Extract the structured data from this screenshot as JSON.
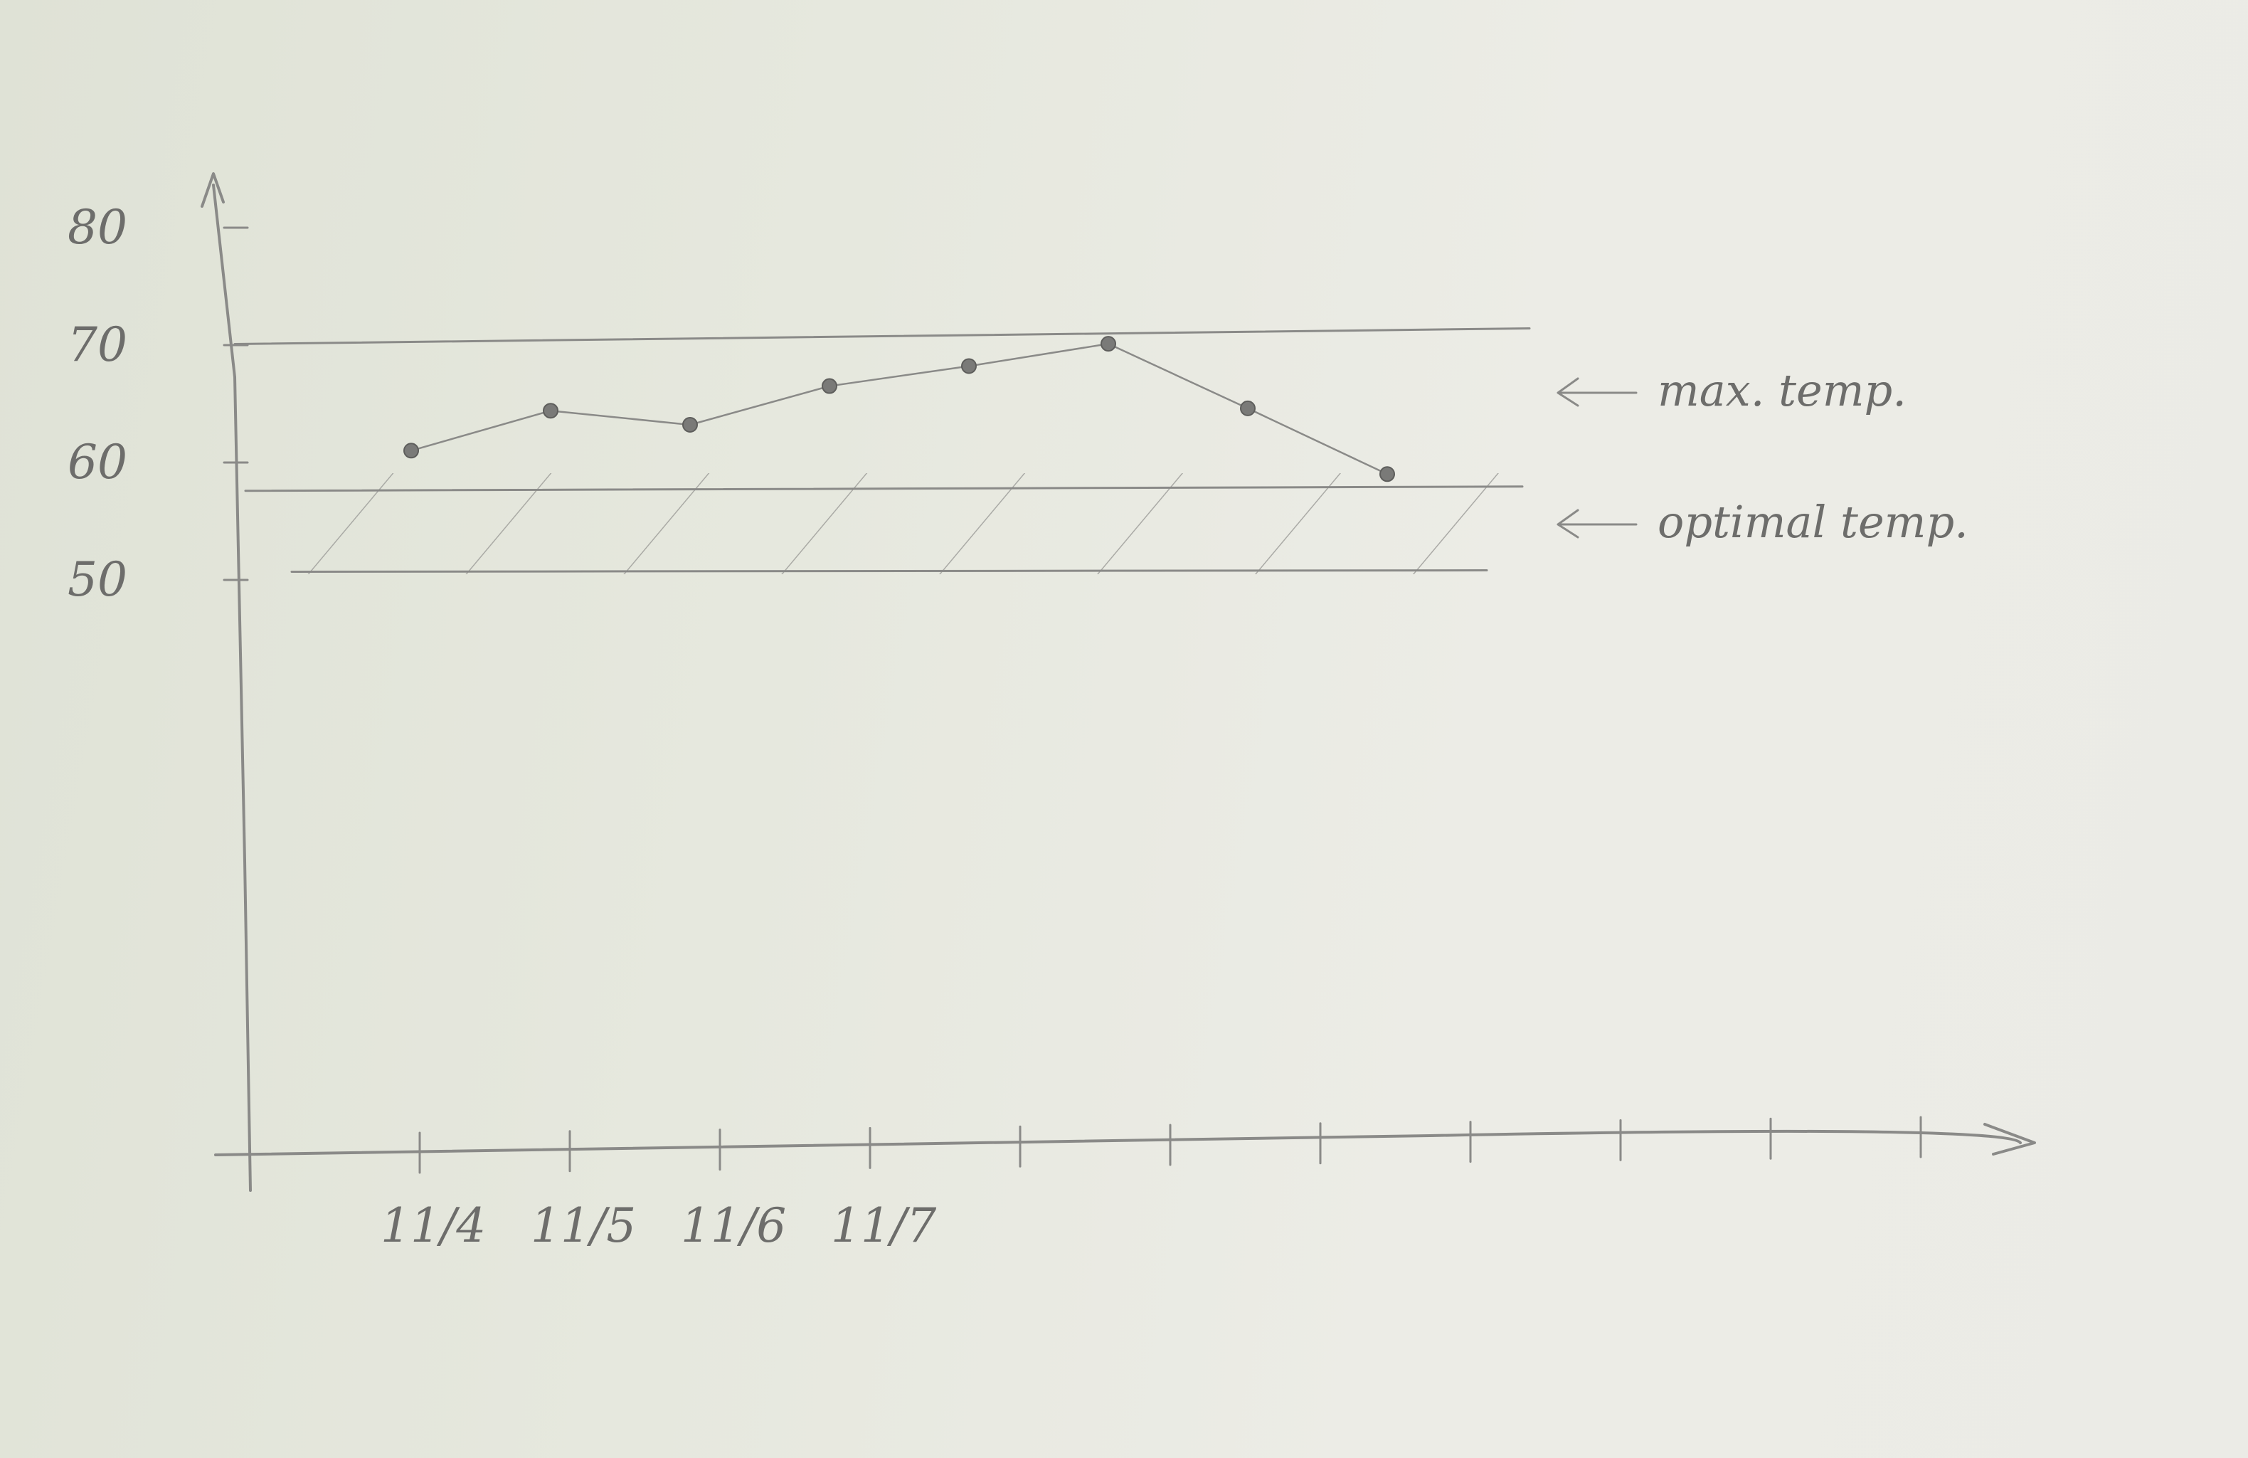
{
  "chart_data": {
    "type": "line",
    "title": "",
    "xlabel": "",
    "ylabel": "",
    "ylim": [
      50,
      80
    ],
    "yticks": [
      "50",
      "60",
      "70",
      "80"
    ],
    "xticks": [
      "11/4",
      "11/5",
      "11/6",
      "11/7"
    ],
    "x_tick_marks": 11,
    "series": [
      {
        "values": [
          {
            "x": 0,
            "y": 59.8
          },
          {
            "x": 1,
            "y": 63.2
          },
          {
            "x": 2,
            "y": 62.0
          },
          {
            "x": 3,
            "y": 65.3
          },
          {
            "x": 4,
            "y": 67.0
          },
          {
            "x": 5,
            "y": 68.9
          },
          {
            "x": 6,
            "y": 63.4
          },
          {
            "x": 7,
            "y": 57.8
          }
        ]
      }
    ],
    "reference_lines": [
      {
        "label": "max. temp.",
        "y": 69
      }
    ],
    "bands": [
      {
        "label": "optimal temp.",
        "from": 51,
        "to": 58.5,
        "hatched": true
      }
    ],
    "grid": false,
    "colors": {
      "pencil": "#8a8a88",
      "paper": "#e6e8de"
    }
  }
}
